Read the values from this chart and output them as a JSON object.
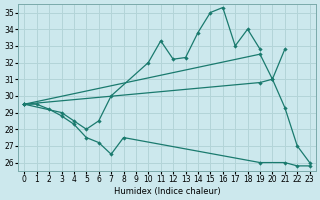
{
  "bg_color": "#cce8ed",
  "grid_color": "#b3d4d8",
  "line_color": "#1a7a6e",
  "xlabel": "Humidex (Indice chaleur)",
  "xlim": [
    -0.5,
    23.5
  ],
  "ylim": [
    25.5,
    35.5
  ],
  "xticks": [
    0,
    1,
    2,
    3,
    4,
    5,
    6,
    7,
    8,
    9,
    10,
    11,
    12,
    13,
    14,
    15,
    16,
    17,
    18,
    19,
    20,
    21,
    22,
    23
  ],
  "yticks": [
    26,
    27,
    28,
    29,
    30,
    31,
    32,
    33,
    34,
    35
  ],
  "lines": [
    {
      "x": [
        0,
        3,
        4,
        5,
        6,
        7,
        10,
        11,
        12,
        13,
        14,
        15,
        16,
        17,
        18,
        19
      ],
      "y": [
        29.5,
        29.0,
        28.5,
        28.0,
        28.5,
        30.0,
        32.0,
        33.3,
        32.2,
        32.3,
        33.8,
        35.0,
        35.3,
        33.0,
        34.0,
        32.8
      ]
    },
    {
      "x": [
        0,
        19,
        20,
        21
      ],
      "y": [
        29.5,
        32.5,
        31.0,
        32.8
      ]
    },
    {
      "x": [
        0,
        19,
        20,
        21,
        22,
        23
      ],
      "y": [
        29.5,
        30.8,
        31.0,
        29.3,
        27.0,
        26.0
      ]
    },
    {
      "x": [
        0,
        1,
        2,
        3,
        4,
        5,
        6,
        7,
        8,
        19,
        21,
        22,
        23
      ],
      "y": [
        29.5,
        29.5,
        29.2,
        28.8,
        28.3,
        27.5,
        27.2,
        26.5,
        27.5,
        26.0,
        26.0,
        25.8,
        25.8
      ]
    }
  ]
}
